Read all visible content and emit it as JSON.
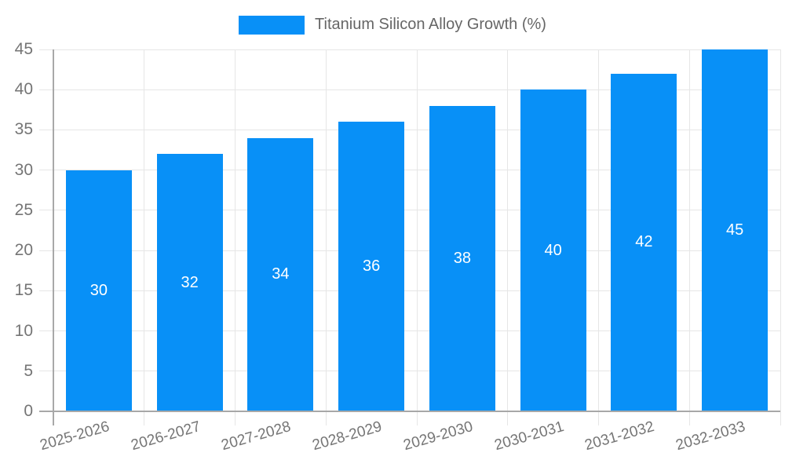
{
  "chart_data": {
    "type": "bar",
    "series_name": "Titanium Silicon Alloy Growth (%)",
    "categories": [
      "2025-2026",
      "2026-2027",
      "2027-2028",
      "2028-2029",
      "2029-2030",
      "2030-2031",
      "2031-2032",
      "2032-2033"
    ],
    "values": [
      30,
      32,
      34,
      36,
      38,
      40,
      42,
      45
    ],
    "xlabel": "",
    "ylabel": "",
    "ylim": [
      0,
      45
    ],
    "yticks": [
      0,
      5,
      10,
      15,
      20,
      25,
      30,
      35,
      40,
      45
    ],
    "grid": true,
    "legend_position": "top",
    "value_labels_inside_bars": true,
    "x_label_rotation_deg": -16,
    "colors": {
      "bar": "#0890F7",
      "grid": "#E6E6E6",
      "axis": "#A8A8A8",
      "tick_label": "#757575",
      "legend_text": "#666666",
      "value_label": "#FFFFFF",
      "background": "#FFFFFF"
    }
  }
}
